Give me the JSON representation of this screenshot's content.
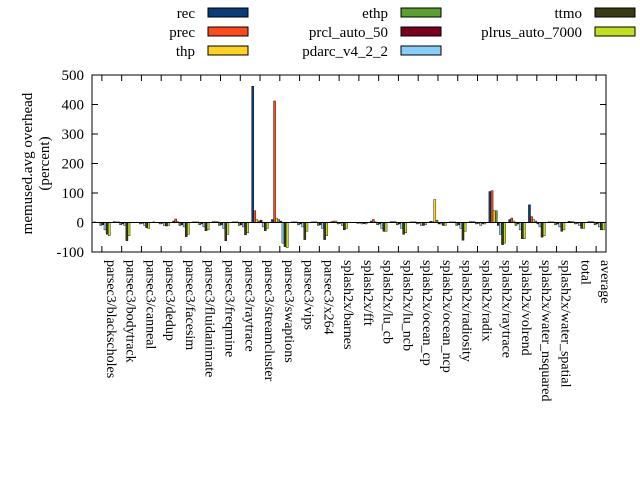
{
  "chart_data": {
    "type": "bar",
    "ylabel": "memused.avg overhead\n(percent)",
    "ylim": [
      -100,
      500
    ],
    "yticks": [
      -100,
      0,
      100,
      200,
      300,
      400,
      500
    ],
    "grid": false,
    "legend_position": "top",
    "categories": [
      "parsec3/blackscholes",
      "parsec3/bodytrack",
      "parsec3/canneal",
      "parsec3/dedup",
      "parsec3/facesim",
      "parsec3/fluidanimate",
      "parsec3/freqmine",
      "parsec3/raytrace",
      "parsec3/streamcluster",
      "parsec3/swaptions",
      "parsec3/vips",
      "parsec3/x264",
      "splash2x/barnes",
      "splash2x/fft",
      "splash2x/lu_cb",
      "splash2x/lu_ncb",
      "splash2x/ocean_cp",
      "splash2x/ocean_ncp",
      "splash2x/radiosity",
      "splash2x/radix",
      "splash2x/raytrace",
      "splash2x/volrend",
      "splash2x/water_nsquared",
      "splash2x/water_spatial",
      "total",
      "average"
    ],
    "series": [
      {
        "name": "rec",
        "color": "#0b3c7a",
        "values": [
          2,
          3,
          1,
          2,
          5,
          2,
          3,
          2,
          462,
          10,
          2,
          2,
          3,
          1,
          5,
          3,
          2,
          4,
          2,
          3,
          105,
          10,
          60,
          2,
          4,
          3
        ]
      },
      {
        "name": "prec",
        "color": "#ff4a1c",
        "values": [
          1,
          2,
          1,
          1,
          12,
          2,
          3,
          2,
          40,
          412,
          2,
          2,
          5,
          1,
          10,
          3,
          2,
          3,
          2,
          3,
          108,
          15,
          20,
          2,
          3,
          3
        ]
      },
      {
        "name": "thp",
        "color": "#ffd21f",
        "values": [
          1,
          2,
          1,
          1,
          3,
          2,
          3,
          2,
          10,
          15,
          2,
          2,
          5,
          1,
          2,
          3,
          2,
          78,
          2,
          3,
          40,
          5,
          10,
          2,
          3,
          3
        ]
      },
      {
        "name": "ethp",
        "color": "#5aa02c",
        "values": [
          -10,
          -8,
          -5,
          -5,
          -10,
          -8,
          -10,
          -10,
          5,
          10,
          -8,
          -10,
          -5,
          -3,
          -8,
          -8,
          -5,
          8,
          -10,
          -5,
          40,
          -10,
          5,
          -8,
          -5,
          -8
        ]
      },
      {
        "name": "prcl_auto_50",
        "color": "#7a0020",
        "values": [
          -8,
          -5,
          -3,
          -3,
          -8,
          -5,
          -8,
          -8,
          8,
          5,
          -5,
          -8,
          -3,
          -2,
          -5,
          -5,
          -3,
          -5,
          -8,
          -3,
          -10,
          -5,
          -5,
          -5,
          -3,
          -5
        ]
      },
      {
        "name": "pdarc_v4_2_2",
        "color": "#87cefa",
        "values": [
          -25,
          -10,
          -10,
          -10,
          -15,
          -15,
          -20,
          -15,
          -15,
          -70,
          -15,
          -20,
          -10,
          -5,
          -20,
          -20,
          -10,
          -5,
          -20,
          -10,
          -40,
          -25,
          -15,
          -15,
          -10,
          -15
        ]
      },
      {
        "name": "ttmo",
        "color": "#3a3a14",
        "values": [
          -40,
          -62,
          -18,
          -12,
          -48,
          -28,
          -62,
          -42,
          -28,
          -82,
          -58,
          -58,
          -25,
          -4,
          -30,
          -40,
          -10,
          -10,
          -60,
          -5,
          -75,
          -55,
          -50,
          -30,
          -20,
          -25
        ]
      },
      {
        "name": "plrus_auto_7000",
        "color": "#c4e01c",
        "values": [
          -45,
          -45,
          -20,
          -10,
          -40,
          -25,
          -40,
          -35,
          -20,
          -85,
          -30,
          -45,
          -20,
          -5,
          -30,
          -35,
          -8,
          -10,
          -30,
          -5,
          -70,
          -55,
          -45,
          -25,
          -20,
          -25
        ]
      }
    ]
  }
}
